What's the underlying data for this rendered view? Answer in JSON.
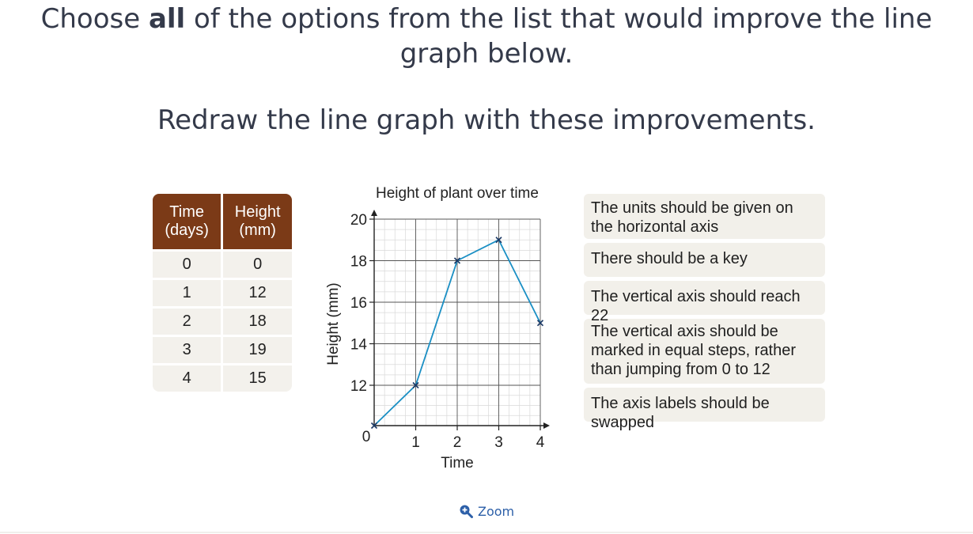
{
  "question": {
    "prefix": "Choose ",
    "emphasis": "all",
    "suffix": " of the options from the list that would improve the line graph below."
  },
  "instruction": "Redraw the line graph with these improvements.",
  "table": {
    "headers": [
      {
        "line1": "Time",
        "line2": "(days)"
      },
      {
        "line1": "Height",
        "line2": "(mm)"
      }
    ],
    "rows": [
      [
        "0",
        "0"
      ],
      [
        "1",
        "12"
      ],
      [
        "2",
        "18"
      ],
      [
        "3",
        "19"
      ],
      [
        "4",
        "15"
      ]
    ]
  },
  "chart_data": {
    "type": "line",
    "title": "Height of plant over time",
    "xlabel": "Time",
    "ylabel": "Height (mm)",
    "x_ticks": [
      "1",
      "2",
      "3",
      "4"
    ],
    "y_ticks": [
      "12",
      "14",
      "16",
      "18",
      "20"
    ],
    "origin_label": "0",
    "x": [
      0,
      1,
      2,
      3,
      4
    ],
    "y": [
      0,
      12,
      18,
      19,
      15
    ],
    "y_axis_break": "jumps from 0 to 12",
    "xlim": [
      0,
      4
    ],
    "ylim": [
      11,
      20
    ],
    "grid": true,
    "color": "#1a8fc4"
  },
  "options": [
    "The units should be given on the horizontal axis",
    "There should be a key",
    "The vertical axis should reach 22",
    "The vertical axis should be marked in equal steps, rather than jumping from 0 to 12",
    "The axis labels should be swapped"
  ],
  "zoom": {
    "label": "Zoom",
    "icon": "zoom-in-icon",
    "color": "#2c5fa8"
  }
}
